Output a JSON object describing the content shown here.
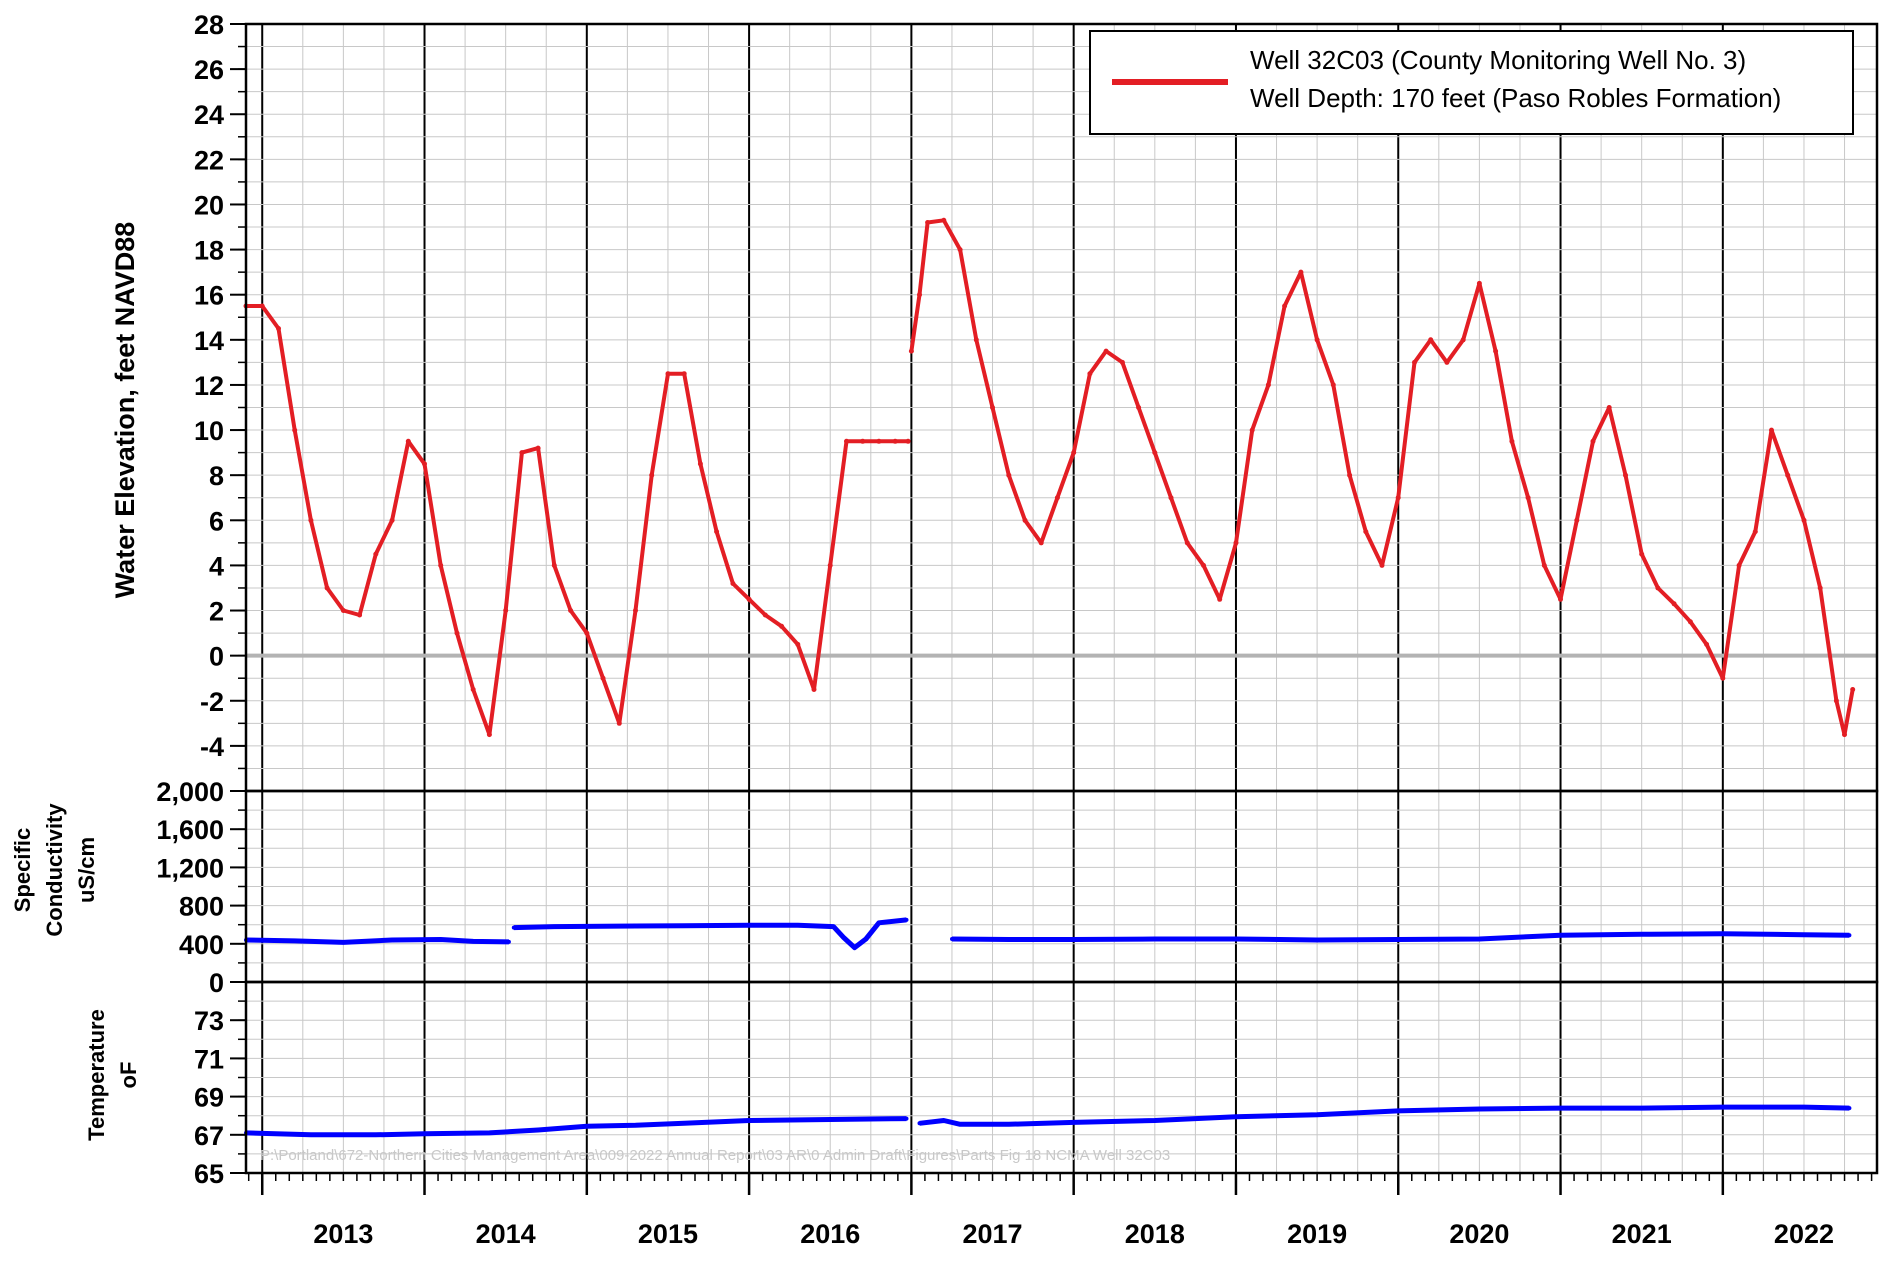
{
  "colors": {
    "water_level": "#e31e24",
    "conductivity": "#0000ff",
    "temperature": "#0000ff",
    "zero_line": "#b3b3b3",
    "grid_minor": "#c8c8c8",
    "grid_major": "#000000"
  },
  "legend": {
    "line1": "Well 32C03 (County Monitoring Well No. 3)",
    "line2": "Well Depth: 170 feet (Paso Robles Formation)",
    "placement": "top-right"
  },
  "footer": "P:\\Portland\\672-Northern Cities Management Area\\009-2022 Annual Report\\03 AR\\0 Admin Draft\\Figures\\Parts Fig 18 NCMA Well 32C03",
  "x_axis": {
    "labels": [
      "2013",
      "2014",
      "2015",
      "2016",
      "2017",
      "2018",
      "2019",
      "2020",
      "2021",
      "2022"
    ],
    "domain": [
      2012.9,
      2022.95
    ]
  },
  "chart_data": [
    {
      "type": "line",
      "panel": "water-elevation",
      "ylabel": "Water Elevation, feet NAVD88",
      "ylim": [
        -6,
        28
      ],
      "yticks": [
        "-4",
        "-2",
        "0",
        "2",
        "4",
        "6",
        "8",
        "10",
        "12",
        "14",
        "16",
        "18",
        "20",
        "22",
        "24",
        "26",
        "28"
      ],
      "ytick_values": [
        -4,
        -2,
        0,
        2,
        4,
        6,
        8,
        10,
        12,
        14,
        16,
        18,
        20,
        22,
        24,
        26,
        28
      ],
      "grid": true,
      "series": [
        {
          "name": "Well 32C03 (County Monitoring Well No. 3)",
          "x": [
            2012.9,
            2013.0,
            2013.1,
            2013.2,
            2013.3,
            2013.4,
            2013.5,
            2013.6,
            2013.7,
            2013.8,
            2013.9,
            2014.0,
            2014.1,
            2014.2,
            2014.3,
            2014.4,
            2014.5,
            2014.6,
            2014.7,
            2014.8,
            2014.9,
            2015.0,
            2015.1,
            2015.2,
            2015.3,
            2015.4,
            2015.5,
            2015.6,
            2015.7,
            2015.8,
            2015.9,
            2016.0,
            2016.1,
            2016.2,
            2016.3,
            2016.4,
            2016.5,
            2016.6,
            2016.7,
            2016.8,
            2016.9,
            2016.98
          ],
          "y": [
            15.5,
            15.5,
            14.5,
            10,
            6,
            3,
            2,
            1.8,
            4.5,
            6,
            9.5,
            8.5,
            4,
            1,
            -1.5,
            -3.5,
            2,
            9,
            9.2,
            4,
            2,
            1,
            -1,
            -3,
            2,
            8,
            12.5,
            12.5,
            8.5,
            5.5,
            3.2,
            2.5,
            1.8,
            1.3,
            0.5,
            -1.5,
            4,
            9.5,
            9.5,
            9.5,
            9.5,
            9.5
          ],
          "segment": 1
        },
        {
          "name": "Well 32C03 (County Monitoring Well No. 3)",
          "x": [
            2017.0,
            2017.05,
            2017.1,
            2017.2,
            2017.3,
            2017.4,
            2017.5,
            2017.6,
            2017.7,
            2017.8,
            2017.9,
            2018.0,
            2018.1,
            2018.2,
            2018.3,
            2018.4,
            2018.5,
            2018.6,
            2018.7,
            2018.8,
            2018.9,
            2019.0,
            2019.1,
            2019.2,
            2019.3,
            2019.4,
            2019.5,
            2019.6,
            2019.7,
            2019.8,
            2019.9,
            2020.0,
            2020.1,
            2020.2,
            2020.3,
            2020.4,
            2020.5,
            2020.6,
            2020.7,
            2020.8,
            2020.9,
            2021.0,
            2021.1,
            2021.2,
            2021.3,
            2021.4,
            2021.5,
            2021.6,
            2021.7,
            2021.8,
            2021.9,
            2022.0,
            2022.1,
            2022.2,
            2022.3,
            2022.4,
            2022.5,
            2022.6,
            2022.7,
            2022.75,
            2022.8
          ],
          "y": [
            13.5,
            16,
            19.2,
            19.3,
            18,
            14,
            11,
            8,
            6,
            5,
            7,
            9,
            12.5,
            13.5,
            13,
            11,
            9,
            7,
            5,
            4,
            2.5,
            5,
            10,
            12,
            15.5,
            17,
            14,
            12,
            8,
            5.5,
            4,
            7,
            13,
            14,
            13,
            14,
            16.5,
            13.5,
            9.5,
            7,
            4,
            2.5,
            6,
            9.5,
            11,
            8,
            4.5,
            3,
            2.3,
            1.5,
            0.5,
            -1,
            4,
            5.5,
            10,
            8,
            6,
            3,
            -2,
            -3.5,
            -1.5
          ],
          "segment": 2
        }
      ]
    },
    {
      "type": "line",
      "panel": "specific-conductivity",
      "ylabel": "Specific Conductivity uS/cm",
      "ylabel_lines": [
        "Specific",
        "Conductivity",
        "uS/cm"
      ],
      "ylim": [
        0,
        2000
      ],
      "yticks": [
        "0",
        "400",
        "800",
        "1,200",
        "1,600",
        "2,000"
      ],
      "ytick_values": [
        0,
        400,
        800,
        1200,
        1600,
        2000
      ],
      "grid": true,
      "series": [
        {
          "x": [
            2012.9,
            2013.2,
            2013.5,
            2013.8,
            2014.1,
            2014.3,
            2014.52
          ],
          "y": [
            440,
            430,
            415,
            440,
            445,
            425,
            420
          ],
          "segment": 1
        },
        {
          "x": [
            2014.55,
            2014.8,
            2015.2,
            2015.6,
            2016.0,
            2016.3,
            2016.52,
            2016.58,
            2016.65,
            2016.72,
            2016.8,
            2016.97
          ],
          "y": [
            570,
            580,
            585,
            590,
            595,
            595,
            580,
            470,
            360,
            450,
            620,
            650
          ],
          "segment": 2
        },
        {
          "x": [
            2017.25,
            2017.6,
            2018.0,
            2018.5,
            2019.0,
            2019.5,
            2020.0,
            2020.5,
            2021.0,
            2021.5,
            2022.0,
            2022.5,
            2022.78
          ],
          "y": [
            450,
            445,
            445,
            450,
            450,
            440,
            445,
            450,
            490,
            500,
            505,
            495,
            490
          ],
          "segment": 3
        }
      ]
    },
    {
      "type": "line",
      "panel": "temperature",
      "ylabel": "Temperature °F",
      "ylabel_lines": [
        "Temperature",
        "oF"
      ],
      "ylim": [
        65,
        75
      ],
      "yticks": [
        "65",
        "67",
        "69",
        "71",
        "73"
      ],
      "ytick_values": [
        65,
        67,
        69,
        71,
        73
      ],
      "grid": true,
      "series": [
        {
          "x": [
            2012.9,
            2013.3,
            2013.7,
            2014.0,
            2014.4,
            2014.7,
            2015.0,
            2015.3,
            2015.6,
            2016.0,
            2016.5,
            2016.97
          ],
          "y": [
            67.1,
            67.0,
            67.0,
            67.05,
            67.1,
            67.25,
            67.45,
            67.5,
            67.6,
            67.75,
            67.8,
            67.85
          ],
          "segment": 1
        },
        {
          "x": [
            2017.05,
            2017.2,
            2017.3,
            2017.6,
            2018.0,
            2018.5,
            2019.0,
            2019.5,
            2020.0,
            2020.5,
            2021.0,
            2021.5,
            2022.0,
            2022.5,
            2022.78
          ],
          "y": [
            67.6,
            67.75,
            67.55,
            67.55,
            67.65,
            67.75,
            67.95,
            68.05,
            68.25,
            68.35,
            68.4,
            68.4,
            68.45,
            68.45,
            68.4
          ],
          "segment": 2
        }
      ]
    }
  ]
}
